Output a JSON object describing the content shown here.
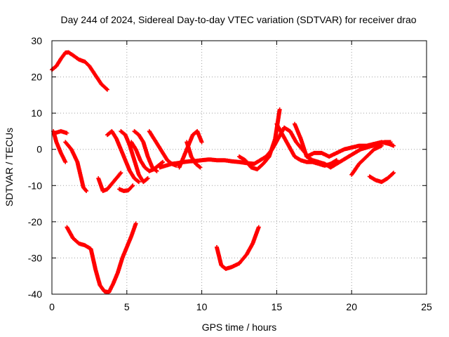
{
  "chart_data": {
    "type": "scatter",
    "title": "Day 244 of 2024, Sidereal Day-to-day VTEC variation (SDTVAR) for receiver drao",
    "xlabel": "GPS time / hours",
    "ylabel": "SDTVAR / TECUs",
    "xlim": [
      0,
      25
    ],
    "ylim": [
      -40,
      30
    ],
    "xticks": [
      "0",
      "5",
      "10",
      "15",
      "20",
      "25"
    ],
    "yticks": [
      "30",
      "20",
      "10",
      "0",
      "-10",
      "-20",
      "-30",
      "-40"
    ],
    "grid": true,
    "color": "#ff0000",
    "series": [
      {
        "x": [
          0.0,
          0.3,
          0.6,
          0.9,
          1.1,
          1.4,
          1.8,
          2.2,
          2.5,
          2.9,
          3.3,
          3.7
        ],
        "y": [
          22,
          23,
          25,
          26.7,
          26.8,
          26,
          24.8,
          24.2,
          23,
          20.5,
          18,
          16.5
        ]
      },
      {
        "x": [
          0.1,
          0.3,
          0.6,
          0.9
        ],
        "y": [
          5,
          2,
          -1,
          -3.5
        ]
      },
      {
        "x": [
          0.2,
          0.6,
          1.0
        ],
        "y": [
          4.5,
          5,
          4.5
        ]
      },
      {
        "x": [
          0.9,
          1.3,
          1.7,
          1.9,
          2.1,
          2.3
        ],
        "y": [
          2,
          0,
          -3.5,
          -7,
          -10.5,
          -11.5
        ]
      },
      {
        "x": [
          1.0,
          1.4,
          1.8,
          2.2,
          2.6,
          2.9,
          3.2,
          3.5,
          3.8,
          4.1,
          4.4,
          4.7,
          5.0,
          5.3,
          5.6
        ],
        "y": [
          -21.5,
          -24.5,
          -26,
          -26.5,
          -27.5,
          -33,
          -37.5,
          -39.2,
          -39.5,
          -37,
          -34,
          -30,
          -27,
          -24,
          -20.5
        ]
      },
      {
        "x": [
          3.1,
          3.4,
          3.7,
          4.0,
          4.3,
          4.6
        ],
        "y": [
          -8,
          -11.5,
          -11,
          -9.5,
          -8,
          -6.5
        ]
      },
      {
        "x": [
          3.7,
          4.0,
          4.3,
          4.6,
          4.9,
          5.2,
          5.5,
          5.8
        ],
        "y": [
          4,
          5,
          3,
          0,
          -3,
          -6,
          -8,
          -9
        ]
      },
      {
        "x": [
          4.6,
          4.9,
          5.2,
          5.5,
          5.8,
          6.1,
          6.4
        ],
        "y": [
          5,
          4,
          1,
          -3,
          -7,
          -9,
          -8
        ]
      },
      {
        "x": [
          4.5,
          4.8,
          5.1,
          5.4
        ],
        "y": [
          -11,
          -11.5,
          -11.3,
          -10
        ]
      },
      {
        "x": [
          5.5,
          5.8,
          6.1,
          6.4,
          6.7,
          7.0
        ],
        "y": [
          5,
          4,
          2,
          -2,
          -5,
          -6
        ]
      },
      {
        "x": [
          5.3,
          5.6,
          5.9,
          6.2,
          6.5,
          6.8,
          7.1,
          7.4
        ],
        "y": [
          2,
          0,
          -3,
          -5,
          -6,
          -5.5,
          -4.5,
          -3.5
        ]
      },
      {
        "x": [
          6.5,
          6.8,
          7.1,
          7.4,
          7.7,
          8.0,
          8.3
        ],
        "y": [
          5,
          3,
          1,
          -1,
          -3,
          -4,
          -4.5
        ]
      },
      {
        "x": [
          7.2,
          7.6,
          8.0,
          8.4,
          8.8,
          9.2,
          9.6,
          10.0,
          10.5,
          11.0,
          11.5,
          12.0,
          12.5,
          13.0,
          13.5
        ],
        "y": [
          -5,
          -4.5,
          -4,
          -3.8,
          -3.5,
          -3.3,
          -3.2,
          -3,
          -2.8,
          -3,
          -3,
          -3.3,
          -3.5,
          -3.8,
          -4
        ]
      },
      {
        "x": [
          8.5,
          8.8,
          9.1,
          9.4,
          9.7,
          10.0
        ],
        "y": [
          -5,
          -2,
          1,
          4,
          5,
          2
        ]
      },
      {
        "x": [
          9.0,
          9.3,
          9.6,
          9.9
        ],
        "y": [
          2,
          -2,
          -4,
          -5
        ]
      },
      {
        "x": [
          11.0,
          11.3,
          11.6,
          12.0,
          12.5,
          13.0,
          13.4,
          13.8
        ],
        "y": [
          -27,
          -32,
          -33,
          -32.5,
          -31.5,
          -29,
          -26,
          -21.5
        ]
      },
      {
        "x": [
          12.5,
          12.9,
          13.3,
          13.7,
          14.1,
          14.5,
          14.9,
          15.2
        ],
        "y": [
          -2,
          -3,
          -5,
          -5.5,
          -4,
          -2,
          3,
          11
        ]
      },
      {
        "x": [
          13.5,
          13.9,
          14.3,
          14.7,
          15.1,
          15.5,
          15.9,
          16.3,
          16.7,
          17.1
        ],
        "y": [
          -4,
          -3,
          -2,
          0,
          3,
          6,
          5,
          2,
          0,
          -2
        ]
      },
      {
        "x": [
          15.0,
          15.4,
          15.8,
          16.2,
          16.6,
          17.0,
          17.4,
          17.8,
          18.2,
          18.6,
          19.0
        ],
        "y": [
          7,
          4,
          1,
          -2,
          -3,
          -3.5,
          -3.5,
          -4,
          -4.5,
          -4,
          -3
        ]
      },
      {
        "x": [
          16.2,
          16.6,
          17.0,
          17.4,
          17.8,
          18.2,
          18.6,
          19.0,
          19.4,
          19.8,
          20.2,
          20.6,
          21.0,
          21.4,
          21.8,
          22.2,
          22.6
        ],
        "y": [
          7,
          3,
          -2,
          -3,
          -3.5,
          -4,
          -5,
          -4,
          -3,
          -2,
          -1,
          0,
          0.5,
          1,
          1.5,
          2,
          2
        ]
      },
      {
        "x": [
          17.0,
          17.5,
          18.0,
          18.5,
          19.0,
          19.5,
          20.0,
          20.5,
          21.0,
          21.5,
          22.0,
          22.5,
          22.8
        ],
        "y": [
          -2,
          -1,
          -1,
          -2,
          -1,
          0,
          0.5,
          1,
          1,
          1.5,
          2,
          1.5,
          1
        ]
      },
      {
        "x": [
          20.0,
          20.5,
          21.0,
          21.5,
          22.0
        ],
        "y": [
          -7,
          -4,
          -2,
          0,
          1
        ]
      },
      {
        "x": [
          21.2,
          21.6,
          22.0,
          22.4,
          22.8
        ],
        "y": [
          -7.5,
          -8.5,
          -9,
          -8,
          -6.5
        ]
      }
    ]
  }
}
